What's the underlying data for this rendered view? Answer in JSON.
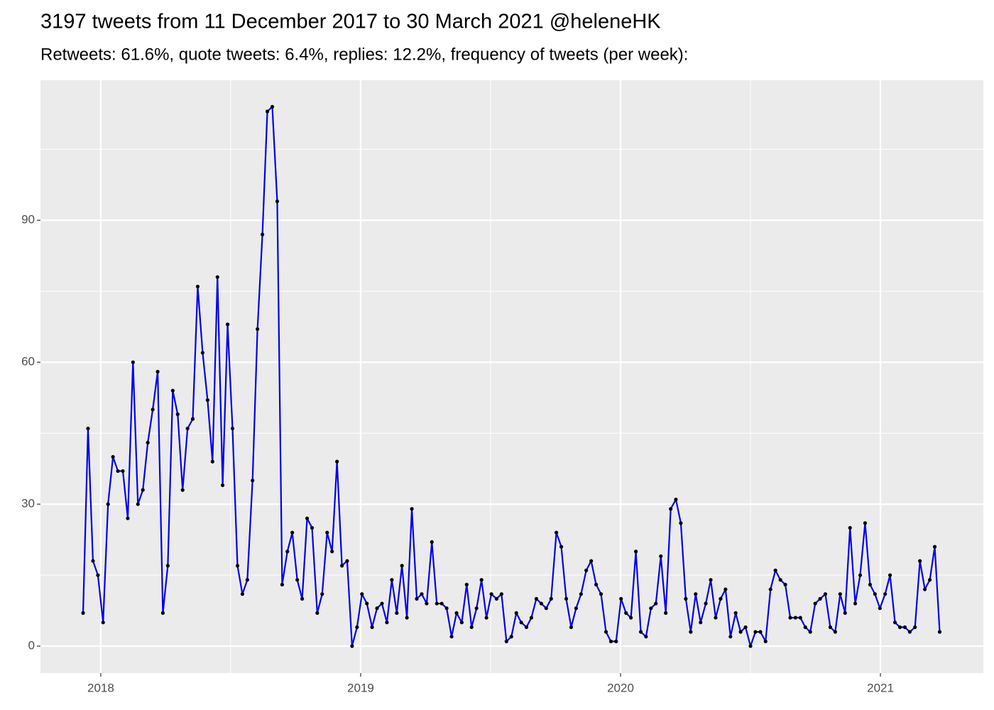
{
  "chart_data": {
    "type": "line",
    "title": "3197 tweets from 11 December 2017 to 30 March 2021 @heleneHK",
    "subtitle": "Retweets: 61.6%, quote tweets: 6.4%, replies: 12.2%, frequency of tweets (per week):",
    "x": [
      2017.932,
      2017.951,
      2017.97,
      2017.989,
      2018.009,
      2018.028,
      2018.047,
      2018.066,
      2018.085,
      2018.104,
      2018.124,
      2018.143,
      2018.162,
      2018.181,
      2018.2,
      2018.219,
      2018.239,
      2018.258,
      2018.277,
      2018.296,
      2018.315,
      2018.334,
      2018.354,
      2018.373,
      2018.392,
      2018.411,
      2018.43,
      2018.449,
      2018.469,
      2018.488,
      2018.507,
      2018.526,
      2018.545,
      2018.564,
      2018.584,
      2018.603,
      2018.622,
      2018.641,
      2018.66,
      2018.679,
      2018.698,
      2018.718,
      2018.737,
      2018.756,
      2018.775,
      2018.794,
      2018.813,
      2018.833,
      2018.852,
      2018.871,
      2018.89,
      2018.909,
      2018.928,
      2018.948,
      2018.967,
      2018.986,
      2019.005,
      2019.024,
      2019.044,
      2019.063,
      2019.082,
      2019.101,
      2019.12,
      2019.139,
      2019.159,
      2019.178,
      2019.197,
      2019.216,
      2019.235,
      2019.254,
      2019.274,
      2019.293,
      2019.312,
      2019.331,
      2019.35,
      2019.369,
      2019.389,
      2019.408,
      2019.427,
      2019.446,
      2019.465,
      2019.484,
      2019.503,
      2019.523,
      2019.542,
      2019.561,
      2019.58,
      2019.599,
      2019.618,
      2019.638,
      2019.657,
      2019.676,
      2019.695,
      2019.714,
      2019.733,
      2019.753,
      2019.772,
      2019.791,
      2019.81,
      2019.829,
      2019.848,
      2019.868,
      2019.887,
      2019.906,
      2019.925,
      2019.944,
      2019.963,
      2019.983,
      2020.002,
      2020.021,
      2020.04,
      2020.059,
      2020.078,
      2020.098,
      2020.117,
      2020.136,
      2020.155,
      2020.174,
      2020.193,
      2020.213,
      2020.232,
      2020.251,
      2020.27,
      2020.289,
      2020.308,
      2020.328,
      2020.347,
      2020.366,
      2020.385,
      2020.404,
      2020.423,
      2020.443,
      2020.462,
      2020.481,
      2020.5,
      2020.519,
      2020.538,
      2020.558,
      2020.577,
      2020.596,
      2020.615,
      2020.634,
      2020.653,
      2020.673,
      2020.692,
      2020.711,
      2020.73,
      2020.749,
      2020.768,
      2020.788,
      2020.807,
      2020.826,
      2020.845,
      2020.864,
      2020.883,
      2020.903,
      2020.922,
      2020.941,
      2020.96,
      2020.979,
      2020.998,
      2021.018,
      2021.037,
      2021.056,
      2021.075,
      2021.094,
      2021.113,
      2021.133,
      2021.152,
      2021.171,
      2021.19,
      2021.209,
      2021.228
    ],
    "values": [
      7,
      46,
      18,
      15,
      5,
      30,
      40,
      37,
      37,
      27,
      60,
      30,
      33,
      43,
      50,
      58,
      7,
      17,
      54,
      49,
      33,
      46,
      48,
      76,
      62,
      52,
      39,
      78,
      34,
      68,
      46,
      17,
      11,
      14,
      35,
      67,
      87,
      113,
      114,
      94,
      13,
      20,
      24,
      14,
      10,
      27,
      25,
      7,
      11,
      24,
      20,
      39,
      17,
      18,
      0,
      4,
      11,
      9,
      4,
      8,
      9,
      5,
      14,
      7,
      17,
      6,
      29,
      10,
      11,
      9,
      22,
      9,
      9,
      8,
      2,
      7,
      5,
      13,
      4,
      8,
      14,
      6,
      11,
      10,
      11,
      1,
      2,
      7,
      5,
      4,
      6,
      10,
      9,
      8,
      10,
      24,
      21,
      10,
      4,
      8,
      11,
      16,
      18,
      13,
      11,
      3,
      1,
      1,
      10,
      7,
      6,
      20,
      3,
      2,
      8,
      9,
      19,
      7,
      29,
      31,
      26,
      10,
      3,
      11,
      5,
      9,
      14,
      6,
      10,
      12,
      2,
      7,
      3,
      4,
      0,
      3,
      3,
      1,
      12,
      16,
      14,
      13,
      6,
      6,
      6,
      4,
      3,
      9,
      10,
      11,
      4,
      3,
      11,
      7,
      25,
      9,
      15,
      26,
      13,
      11,
      8,
      11,
      15,
      5,
      4,
      4,
      3,
      4,
      18,
      12,
      14,
      21,
      3
    ],
    "color": "#0000ee",
    "point_color": "#000000",
    "xlim": [
      2017.768,
      2021.396
    ],
    "xticks": [
      2018,
      2019,
      2020,
      2021
    ],
    "xminor": [
      2018.5,
      2019.5,
      2020.5
    ],
    "ylim": [
      -5.7,
      119.6
    ],
    "yticks": [
      0,
      30,
      60,
      90
    ],
    "yminor": [
      15,
      45,
      75,
      105
    ],
    "grid": true
  }
}
